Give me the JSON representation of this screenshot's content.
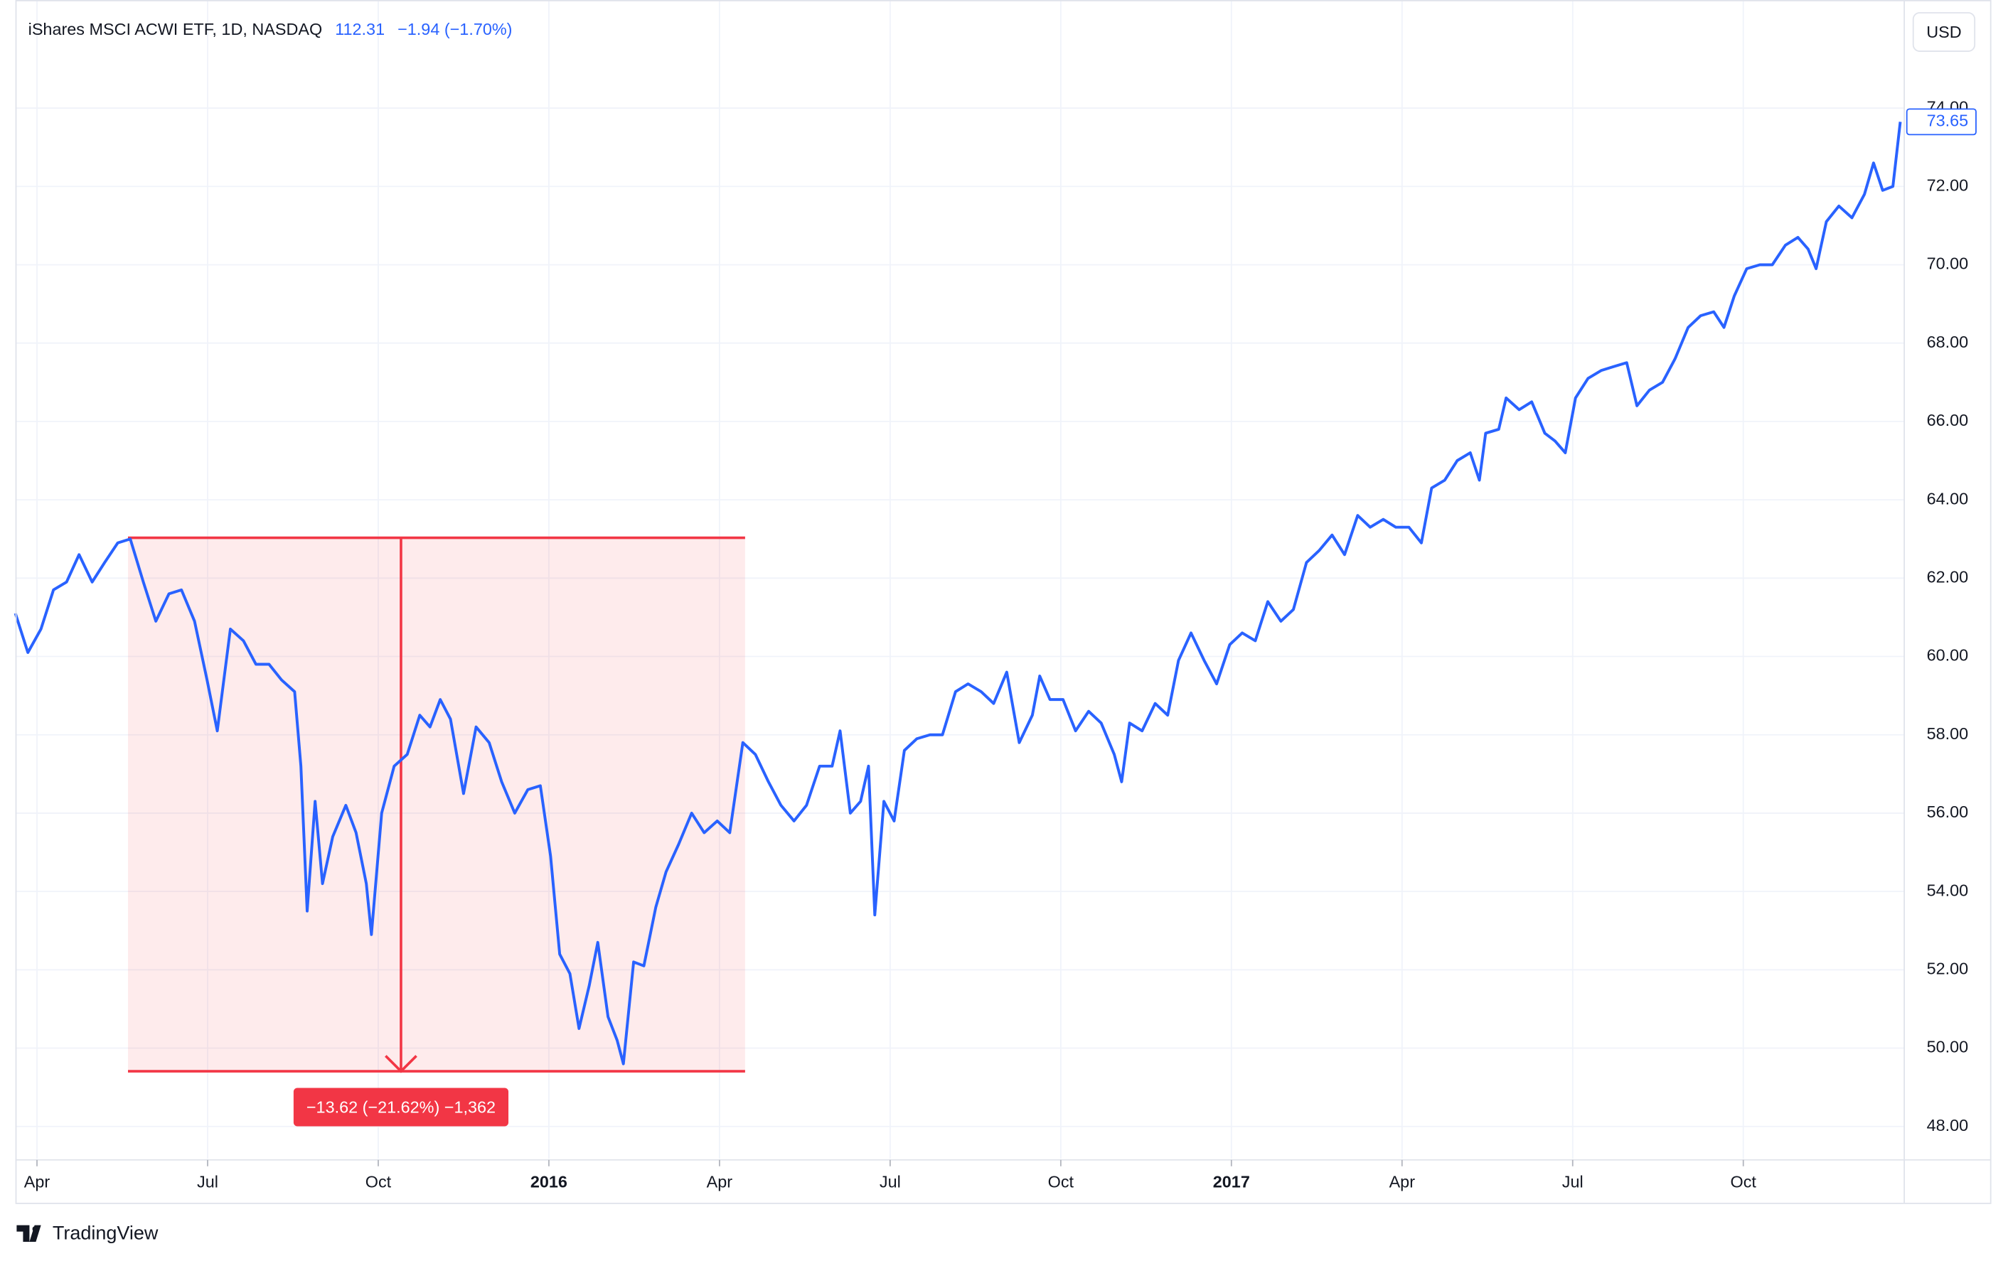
{
  "header": {
    "title": "iShares MSCI ACWI ETF, 1D, NASDAQ",
    "price": "112.31",
    "change": "−1.94 (−1.70%)",
    "currency": "USD",
    "brand": "TradingView"
  },
  "chart_data": {
    "type": "line",
    "color": "#2962ff",
    "x": [
      2.62,
      2.84,
      3.07,
      3.29,
      3.52,
      3.74,
      3.97,
      4.19,
      4.42,
      4.64,
      4.87,
      5.09,
      5.32,
      5.54,
      5.77,
      5.99,
      6.17,
      6.4,
      6.63,
      6.85,
      7.08,
      7.3,
      7.53,
      7.64,
      7.75,
      7.89,
      8.02,
      8.2,
      8.43,
      8.61,
      8.79,
      8.88,
      9.06,
      9.28,
      9.51,
      9.73,
      9.91,
      10.09,
      10.27,
      10.5,
      10.72,
      10.95,
      11.17,
      11.4,
      11.63,
      11.85,
      12.03,
      12.19,
      12.37,
      12.53,
      12.71,
      12.86,
      13.04,
      13.2,
      13.31,
      13.49,
      13.67,
      13.88,
      14.06,
      14.28,
      14.51,
      14.73,
      14.96,
      15.18,
      15.41,
      15.63,
      15.86,
      16.08,
      16.31,
      16.53,
      16.76,
      16.98,
      17.12,
      17.3,
      17.48,
      17.62,
      17.73,
      17.89,
      18.07,
      18.25,
      18.47,
      18.7,
      18.92,
      19.15,
      19.37,
      19.6,
      19.82,
      20.05,
      20.27,
      20.5,
      20.63,
      20.81,
      21.04,
      21.26,
      21.49,
      21.71,
      21.94,
      22.07,
      22.21,
      22.43,
      22.66,
      22.88,
      23.07,
      23.29,
      23.52,
      23.74,
      23.97,
      24.19,
      24.42,
      24.64,
      24.87,
      25.09,
      25.32,
      25.54,
      25.77,
      25.99,
      26.22,
      26.44,
      26.67,
      26.89,
      27.12,
      27.34,
      27.52,
      27.75,
      27.97,
      28.2,
      28.36,
      28.47,
      28.7,
      28.83,
      29.06,
      29.28,
      29.51,
      29.69,
      29.87,
      30.05,
      30.27,
      30.5,
      30.72,
      30.95,
      31.13,
      31.35,
      31.58,
      31.8,
      32.03,
      32.25,
      32.48,
      32.66,
      32.84,
      33.06,
      33.29,
      33.51,
      33.74,
      33.96,
      34.14,
      34.28,
      34.46,
      34.68,
      34.91,
      35.13,
      35.29,
      35.45,
      35.63,
      35.76
    ],
    "values": [
      61.1,
      60.1,
      60.7,
      61.7,
      61.9,
      62.6,
      61.9,
      62.4,
      62.9,
      63.0,
      61.9,
      60.9,
      61.6,
      61.7,
      60.9,
      59.4,
      58.1,
      60.7,
      60.4,
      59.8,
      59.8,
      59.4,
      59.1,
      57.2,
      53.5,
      56.3,
      54.2,
      55.4,
      56.2,
      55.5,
      54.2,
      52.9,
      56.0,
      57.2,
      57.5,
      58.5,
      58.2,
      58.9,
      58.4,
      56.5,
      58.2,
      57.8,
      56.8,
      56.0,
      56.6,
      56.7,
      54.9,
      52.4,
      51.9,
      50.5,
      51.6,
      52.7,
      50.8,
      50.2,
      49.6,
      52.2,
      52.1,
      53.6,
      54.5,
      55.2,
      56.0,
      55.5,
      55.8,
      55.5,
      57.8,
      57.5,
      56.8,
      56.2,
      55.8,
      56.2,
      57.2,
      57.2,
      58.1,
      56.0,
      56.3,
      57.2,
      53.4,
      56.3,
      55.8,
      57.6,
      57.9,
      58.0,
      58.0,
      59.1,
      59.3,
      59.1,
      58.8,
      59.6,
      57.8,
      58.5,
      59.5,
      58.9,
      58.9,
      58.1,
      58.6,
      58.3,
      57.5,
      56.8,
      58.3,
      58.1,
      58.8,
      58.5,
      59.9,
      60.6,
      59.9,
      59.3,
      60.3,
      60.6,
      60.4,
      61.4,
      60.9,
      61.2,
      62.4,
      62.7,
      63.1,
      62.6,
      63.6,
      63.3,
      63.5,
      63.3,
      63.3,
      62.9,
      64.3,
      64.5,
      65.0,
      65.2,
      64.5,
      65.7,
      65.8,
      66.6,
      66.3,
      66.5,
      65.7,
      65.5,
      65.2,
      66.6,
      67.1,
      67.3,
      67.4,
      67.5,
      66.4,
      66.8,
      67.0,
      67.6,
      68.4,
      68.7,
      68.8,
      68.4,
      69.2,
      69.9,
      70.0,
      70.0,
      70.5,
      70.7,
      70.4,
      69.9,
      71.1,
      71.5,
      71.2,
      71.8,
      72.6,
      71.9,
      72.0,
      73.65
    ],
    "xlim": [
      2.62,
      35.83
    ],
    "ylim": [
      47.18,
      76.76
    ],
    "xticks": [
      {
        "value": 3,
        "label": "Apr"
      },
      {
        "value": 6,
        "label": "Jul"
      },
      {
        "value": 9,
        "label": "Oct"
      },
      {
        "value": 12,
        "label": "2016"
      },
      {
        "value": 15,
        "label": "Apr"
      },
      {
        "value": 18,
        "label": "Jul"
      },
      {
        "value": 21,
        "label": "Oct"
      },
      {
        "value": 24,
        "label": "2017"
      },
      {
        "value": 27,
        "label": "Apr"
      },
      {
        "value": 30,
        "label": "Jul"
      },
      {
        "value": 33,
        "label": "Oct"
      }
    ],
    "yticks": [
      {
        "value": 48,
        "label": "48.00"
      },
      {
        "value": 50,
        "label": "50.00"
      },
      {
        "value": 52,
        "label": "52.00"
      },
      {
        "value": 54,
        "label": "54.00"
      },
      {
        "value": 56,
        "label": "56.00"
      },
      {
        "value": 58,
        "label": "58.00"
      },
      {
        "value": 60,
        "label": "60.00"
      },
      {
        "value": 62,
        "label": "62.00"
      },
      {
        "value": 64,
        "label": "64.00"
      },
      {
        "value": 66,
        "label": "66.00"
      },
      {
        "value": 68,
        "label": "68.00"
      },
      {
        "value": 70,
        "label": "70.00"
      },
      {
        "value": 72,
        "label": "72.00"
      },
      {
        "value": 74,
        "label": "74.00"
      }
    ],
    "grid": true,
    "measure": {
      "x_start": 4.6,
      "x_end": 15.45,
      "x_arrow": 9.4,
      "top": 63.03,
      "bottom": 49.41,
      "label": "−13.62 (−21.62%) −1,362",
      "color": "#f23645"
    }
  }
}
